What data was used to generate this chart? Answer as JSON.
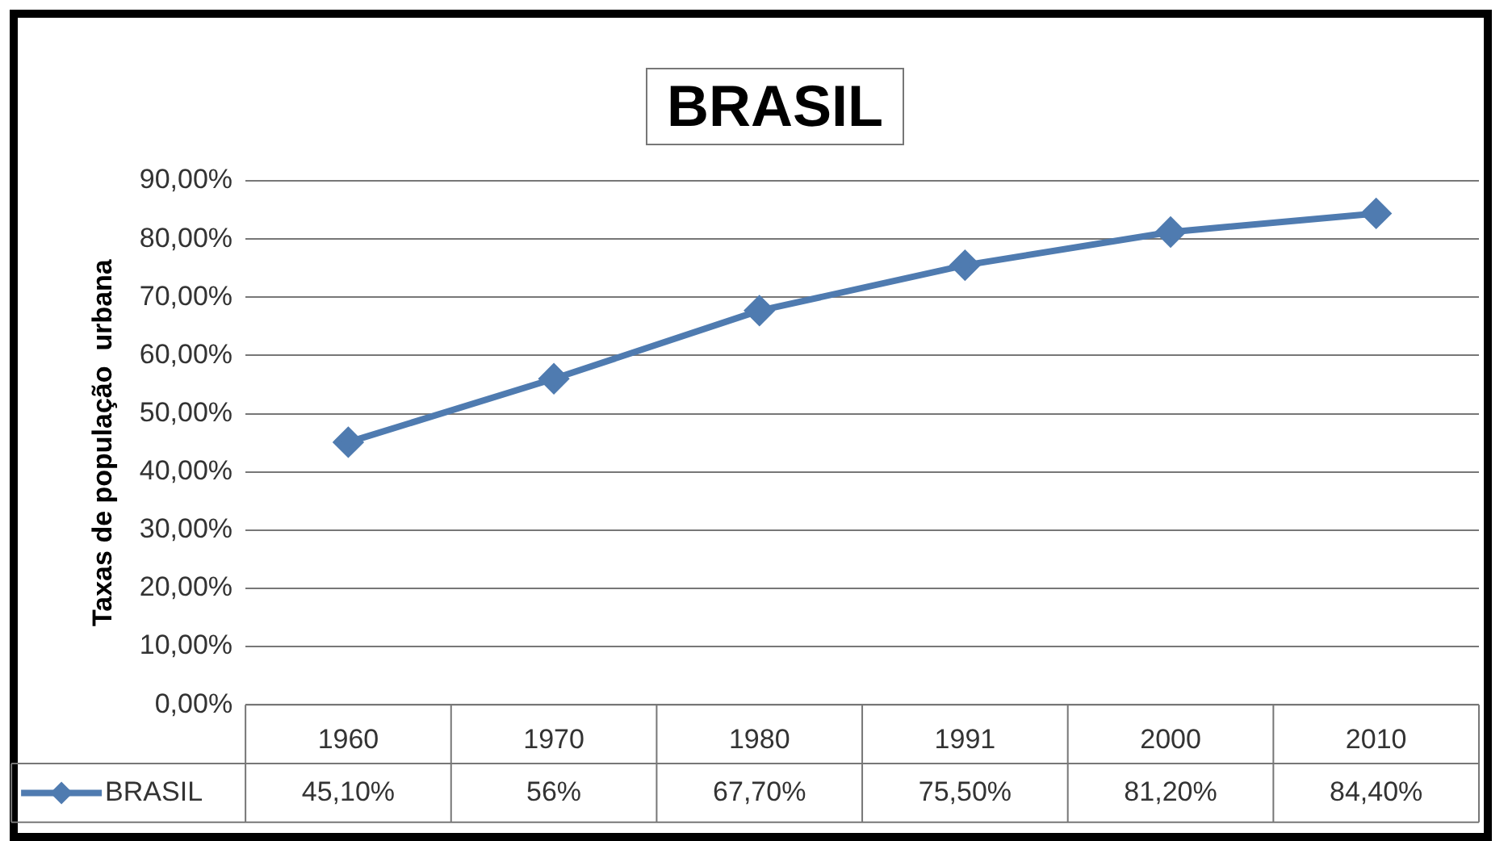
{
  "chart_data": {
    "type": "line",
    "title": "BRASIL",
    "ylabel": "Taxas de população  urbana",
    "categories": [
      "1960",
      "1970",
      "1980",
      "1991",
      "2000",
      "2010"
    ],
    "series": [
      {
        "name": "BRASIL",
        "color": "#4f7bb0",
        "values": [
          45.1,
          56,
          67.7,
          75.5,
          81.2,
          84.4
        ],
        "value_labels": [
          "45,10%",
          "56%",
          "67,70%",
          "75,50%",
          "81,20%",
          "84,40%"
        ]
      }
    ],
    "ylim": [
      0,
      90
    ],
    "yticks": [
      {
        "value": 0,
        "label": "0,00%"
      },
      {
        "value": 10,
        "label": "10,00%"
      },
      {
        "value": 20,
        "label": "20,00%"
      },
      {
        "value": 30,
        "label": "30,00%"
      },
      {
        "value": 40,
        "label": "40,00%"
      },
      {
        "value": 50,
        "label": "50,00%"
      },
      {
        "value": 60,
        "label": "60,00%"
      },
      {
        "value": 70,
        "label": "70,00%"
      },
      {
        "value": 80,
        "label": "80,00%"
      },
      {
        "value": 90,
        "label": "90,00%"
      }
    ],
    "grid": "y",
    "legend": "bottom left",
    "marker": "diamond",
    "line_style": "solid"
  }
}
